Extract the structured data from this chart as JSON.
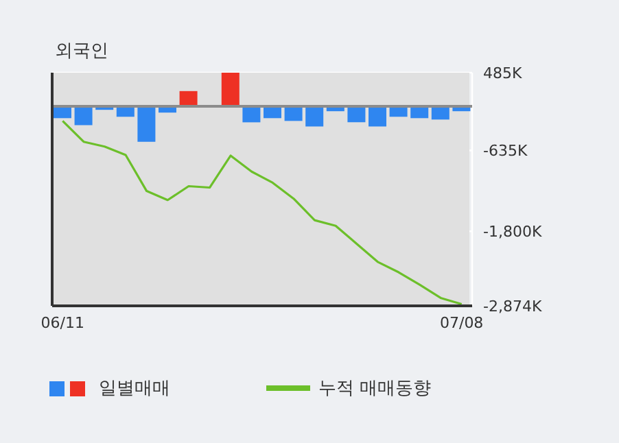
{
  "chart_data": {
    "type": "bar",
    "title": "외국인",
    "categories": [
      "06/11",
      null,
      null,
      null,
      null,
      null,
      null,
      null,
      null,
      null,
      null,
      null,
      null,
      null,
      null,
      null,
      null,
      null,
      null,
      "07/08"
    ],
    "series": [
      {
        "name": "일별매매",
        "colors": [
          "#2f86f0",
          "#2f86f0",
          "#2f86f0",
          "#2f86f0",
          "#2f86f0",
          "#2f86f0",
          "#ee3124",
          "#ee3124",
          "#ee3124",
          "#2f86f0",
          "#2f86f0",
          "#2f86f0",
          "#2f86f0",
          "#2f86f0",
          "#2f86f0",
          "#2f86f0",
          "#2f86f0",
          "#2f86f0",
          "#2f86f0",
          "#2f86f0"
        ],
        "values": [
          -170,
          -270,
          -50,
          -150,
          -510,
          -90,
          220,
          0,
          485,
          -230,
          -170,
          -210,
          -290,
          -70,
          -230,
          -290,
          -150,
          -170,
          -190,
          -70
        ]
      },
      {
        "name": "누적 매매동향",
        "type": "line",
        "color": "#6cbf2a",
        "values": [
          -210,
          -510,
          -580,
          -700,
          -1220,
          -1350,
          -1150,
          -1170,
          -710,
          -940,
          -1100,
          -1330,
          -1640,
          -1720,
          -1980,
          -2240,
          -2390,
          -2570,
          -2760,
          -2850
        ]
      }
    ],
    "ylim": [
      -2874,
      485
    ],
    "yticks": [
      {
        "value": 485,
        "label": "485K"
      },
      {
        "value": -635,
        "label": "-635K"
      },
      {
        "value": -1800,
        "label": "-1,800K"
      },
      {
        "value": -2874,
        "label": "-2,874K"
      }
    ],
    "ref_lines": [
      {
        "axis": "y",
        "value": 0,
        "color": "#8c8c8c"
      }
    ],
    "grid": true,
    "legend": "bottom",
    "marker": "none",
    "line_style": "solid"
  }
}
